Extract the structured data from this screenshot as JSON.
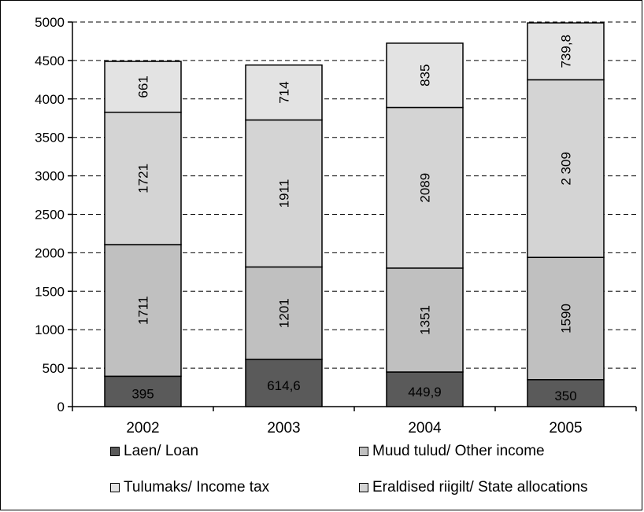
{
  "chart_data": {
    "type": "bar",
    "stacked": true,
    "categories": [
      "2002",
      "2003",
      "2004",
      "2005"
    ],
    "series": [
      {
        "name": "Laen/ Loan",
        "values": [
          395,
          614.6,
          449.9,
          350
        ],
        "labels": [
          "395",
          "614,6",
          "449,9",
          "350"
        ],
        "color": "#5a5a5a",
        "label_orientation": "horizontal"
      },
      {
        "name": "Muud tulud/ Other income",
        "values": [
          1711,
          1201,
          1351,
          1590
        ],
        "labels": [
          "1711",
          "1201",
          "1351",
          "1590"
        ],
        "color": "#c0c0c0",
        "label_orientation": "vertical"
      },
      {
        "name": "Eraldised riigilt/ State allocations",
        "values": [
          1721,
          1911,
          2089,
          2309
        ],
        "labels": [
          "1721",
          "1911",
          "2089",
          "2 309"
        ],
        "color": "#d4d4d4",
        "label_orientation": "vertical"
      },
      {
        "name": "Tulumaks/ Income tax",
        "values": [
          661,
          714,
          835,
          739.8
        ],
        "labels": [
          "661",
          "714",
          "835",
          "739,8"
        ],
        "color": "#e3e3e3",
        "label_orientation": "vertical"
      }
    ],
    "ylim": [
      0,
      5000
    ],
    "yticks": [
      0,
      500,
      1000,
      1500,
      2000,
      2500,
      3000,
      3500,
      4000,
      4500,
      5000
    ],
    "grid": "horizontal-dashed",
    "legend_position": "bottom",
    "legend_order": [
      "Laen/ Loan",
      "Muud tulud/ Other income",
      "Tulumaks/ Income tax",
      "Eraldised riigilt/ State allocations"
    ]
  }
}
